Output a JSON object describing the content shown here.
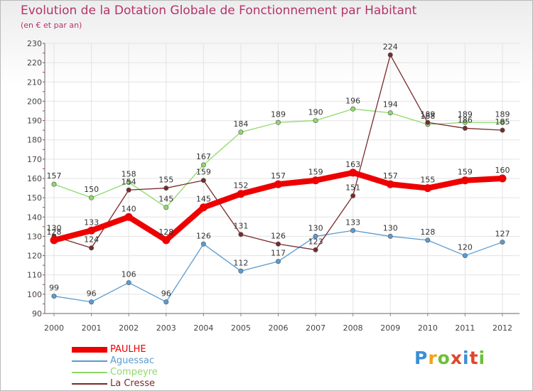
{
  "header": {
    "title": "Evolution de la Dotation Globale de Fonctionnement par Habitant",
    "subtitle": "(en € et par an)"
  },
  "logo": {
    "text": "Proxiti",
    "colors": [
      "#3a8fd6",
      "#f4a21c",
      "#6cbf3a",
      "#e2452b",
      "#3a8fd6",
      "#e2452b",
      "#6cbf3a"
    ]
  },
  "chart_data": {
    "type": "line",
    "title": "Evolution de la Dotation Globale de Fonctionnement par Habitant",
    "subtitle": "(en € et par an)",
    "xlabel": "",
    "ylabel": "",
    "x": [
      "2000",
      "2001",
      "2002",
      "2003",
      "2004",
      "2005",
      "2006",
      "2007",
      "2008",
      "2009",
      "2010",
      "2011",
      "2012"
    ],
    "ylim": [
      90,
      230
    ],
    "yticks": [
      "90",
      "100",
      "110",
      "120",
      "130",
      "140",
      "150",
      "160",
      "170",
      "180",
      "190",
      "200",
      "210",
      "220",
      "230"
    ],
    "grid": true,
    "legend_position": "bottom-left",
    "series": [
      {
        "name": "PAULHE",
        "color": "#ee0000",
        "width": "thick",
        "values": [
          128,
          133,
          140,
          128,
          145,
          152,
          157,
          159,
          163,
          157,
          155,
          159,
          160
        ],
        "labels": [
          "128",
          "133",
          "140",
          "128",
          "145",
          "152",
          "157",
          "159",
          "163",
          "157",
          "155",
          "159",
          "160"
        ]
      },
      {
        "name": "Aguessac",
        "color": "#5b9bd0",
        "width": "thin",
        "values": [
          99,
          96,
          106,
          96,
          126,
          112,
          117,
          130,
          133,
          130,
          128,
          120,
          127
        ],
        "labels": [
          "99",
          "96",
          "106",
          "96",
          "126",
          "112",
          "117",
          "130",
          "133",
          "130",
          "128",
          "120",
          "127"
        ]
      },
      {
        "name": "Compeyre",
        "color": "#8fd96a",
        "width": "thin",
        "values": [
          157,
          150,
          158,
          145,
          167,
          184,
          189,
          190,
          196,
          194,
          188,
          189,
          189
        ],
        "labels": [
          "157",
          "150",
          "158",
          "145",
          "167",
          "184",
          "189",
          "190",
          "196",
          "194",
          "188",
          "189",
          "189"
        ]
      },
      {
        "name": "La Cresse",
        "color": "#7a2a2a",
        "width": "thin",
        "values": [
          130,
          124,
          154,
          155,
          159,
          131,
          126,
          123,
          151,
          224,
          189,
          186,
          185
        ],
        "labels": [
          "130",
          "124",
          "154",
          "155",
          "159",
          "131",
          "126",
          "123",
          "151",
          "224",
          "189",
          "186",
          "185"
        ]
      }
    ]
  }
}
